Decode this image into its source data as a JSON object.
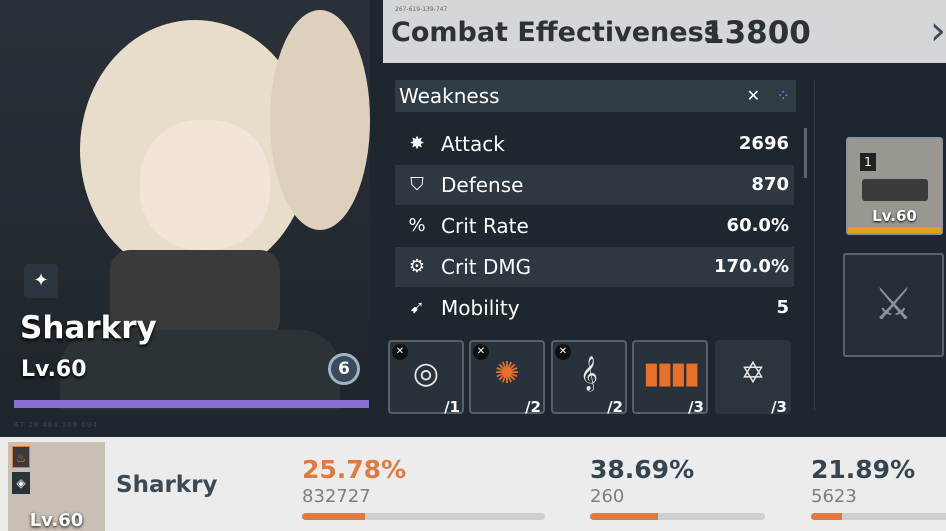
{
  "character": {
    "name": "Sharkry",
    "level": "Lv.60",
    "rank": "6",
    "element_icon": "fire-type-icon"
  },
  "barcode": "47 28 484 369 094",
  "header": {
    "id": "267-619-139-747",
    "title": "Combat Effectiveness",
    "value": "13800"
  },
  "weakness": {
    "label": "Weakness",
    "icons": [
      "crossed-swords-icon",
      "dots-icon"
    ]
  },
  "stats": [
    {
      "icon": "attack-icon",
      "label": "Attack",
      "value": "2696"
    },
    {
      "icon": "shield-icon",
      "label": "Defense",
      "value": "870"
    },
    {
      "icon": "crit-rate-icon",
      "label": "Crit Rate",
      "value": "60.0%"
    },
    {
      "icon": "gear-icon",
      "label": "Crit DMG",
      "value": "170.0%"
    },
    {
      "icon": "boot-icon",
      "label": "Mobility",
      "value": "5"
    }
  ],
  "skills": [
    {
      "icon": "target-icon",
      "level": "/1"
    },
    {
      "icon": "fire-vortex-icon",
      "level": "/2"
    },
    {
      "icon": "treble-clef-icon",
      "level": "/2"
    },
    {
      "icon": "soundwave-icon",
      "level": "/3"
    },
    {
      "icon": "hexagram-icon",
      "level": "/3"
    }
  ],
  "weapon": {
    "rank": "1",
    "level": "Lv.60"
  },
  "bottom": {
    "name": "Sharkry",
    "level": "Lv.60",
    "columns": [
      {
        "percent": "25.78%",
        "count": "832727",
        "fill": 0.2578,
        "color": "#e07b40"
      },
      {
        "percent": "38.69%",
        "count": "260",
        "fill": 0.3869,
        "color": "#35454f"
      },
      {
        "percent": "21.89%",
        "count": "5623",
        "fill": 0.2189,
        "color": "#35454f"
      }
    ]
  }
}
